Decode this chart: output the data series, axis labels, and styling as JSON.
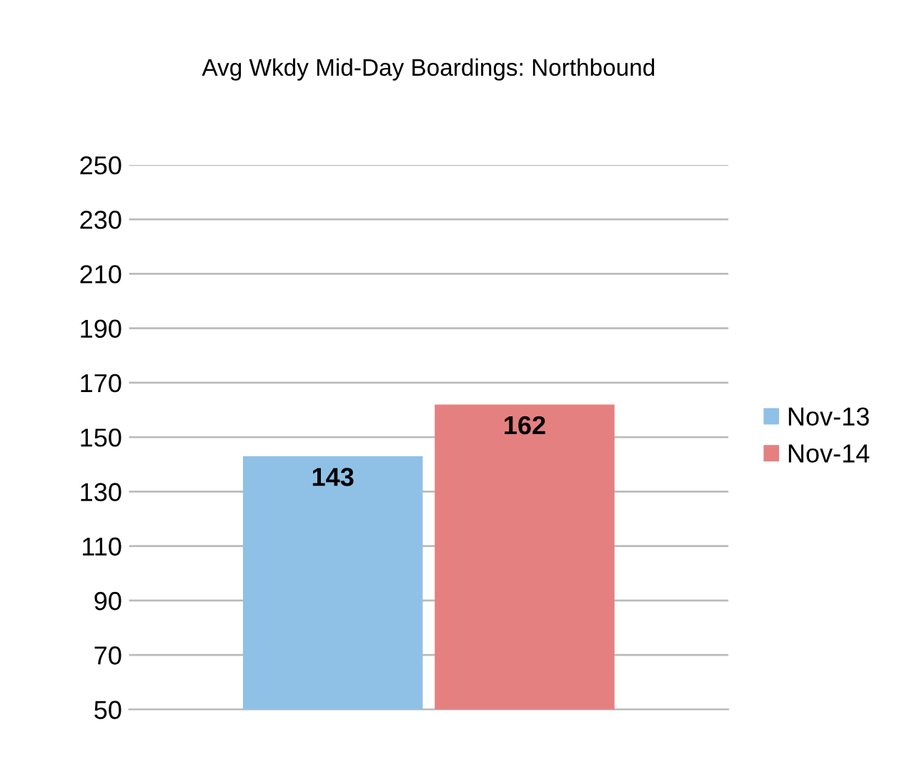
{
  "chart_data": {
    "type": "bar",
    "title": "Avg Wkdy Mid-Day Boardings: Northbound",
    "categories": [
      null
    ],
    "series": [
      {
        "name": "Nov-13",
        "color": "#8fc1e6",
        "values": [
          143
        ]
      },
      {
        "name": "Nov-14",
        "color": "#e58080",
        "values": [
          162
        ]
      }
    ],
    "ylim": [
      50,
      250
    ],
    "yticks": [
      50,
      70,
      90,
      110,
      130,
      150,
      170,
      190,
      210,
      230,
      250
    ],
    "grid": "y",
    "legend": "right",
    "data_labels": true
  }
}
